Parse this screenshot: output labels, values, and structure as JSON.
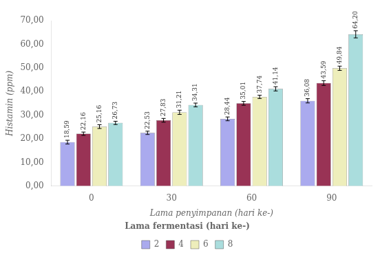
{
  "chart_data": {
    "type": "bar",
    "categories": [
      "0",
      "30",
      "60",
      "90"
    ],
    "series": [
      {
        "name": "2",
        "color": "#aaaaee",
        "values": [
          18.59,
          22.53,
          28.44,
          36.08
        ],
        "errors": [
          0.8,
          0.7,
          0.8,
          0.9
        ],
        "value_labels": [
          "18,59",
          "22,53",
          "28,44",
          "36,08"
        ]
      },
      {
        "name": "4",
        "color": "#993355",
        "values": [
          22.16,
          27.83,
          35.01,
          43.59
        ],
        "errors": [
          0.7,
          0.8,
          0.8,
          1.0
        ],
        "value_labels": [
          "22,16",
          "27,83",
          "35,01",
          "43,59"
        ]
      },
      {
        "name": "6",
        "color": "#eeeebb",
        "values": [
          25.16,
          31.21,
          37.74,
          49.84
        ],
        "errors": [
          0.8,
          0.9,
          0.7,
          0.9
        ],
        "value_labels": [
          "25,16",
          "31,21",
          "37,74",
          "49,84"
        ]
      },
      {
        "name": "8",
        "color": "#aadddd",
        "values": [
          26.73,
          34.31,
          41.14,
          64.2
        ],
        "errors": [
          0.7,
          0.8,
          0.9,
          1.5
        ],
        "value_labels": [
          "26,73",
          "34,31",
          "41,14",
          "64,20"
        ]
      }
    ],
    "xlabel": "Lama penyimpanan (hari ke-)",
    "ylabel": "Histamin (ppm)",
    "legend_title": "Lama fermentasi (hari ke-)",
    "legend": "bottom",
    "ylim": [
      0,
      70
    ],
    "yticks": [
      {
        "value": 0,
        "label": "0,00"
      },
      {
        "value": 10,
        "label": "10,00"
      },
      {
        "value": 20,
        "label": "20,00"
      },
      {
        "value": 30,
        "label": "30,00"
      },
      {
        "value": 40,
        "label": "40,00"
      },
      {
        "value": 50,
        "label": "50,00"
      },
      {
        "value": 60,
        "label": "60,00"
      },
      {
        "value": 70,
        "label": "70,00"
      }
    ],
    "grid": false,
    "data_labels": true
  }
}
